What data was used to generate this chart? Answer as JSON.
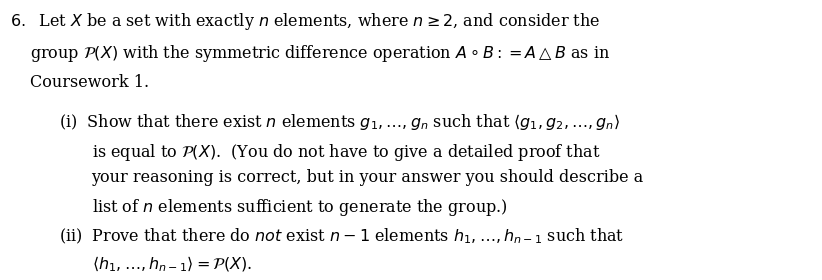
{
  "background_color": "#ffffff",
  "text_color": "#000000",
  "figsize": [
    8.22,
    2.8
  ],
  "dpi": 100,
  "main_text": "6.\\quad \\text{Let } X \\text{ be a set with exactly } n \\text{ elements, where } n \\geq 2 \\text{, and consider the}",
  "line1b": "\\text{group } \\mathcal{P}(X) \\text{ with the symmetric difference operation } A \\circ B := A\\triangle B \\text{ as in}",
  "line1c": "\\text{Coursework 1.}",
  "line_i1": "\\text{(i)\\;\\; Show that there exist } n \\text{ elements } g_1,\\ldots,g_n \\text{ such that } \\langle g_1, g_2, \\ldots, g_n \\rangle",
  "line_i2": "\\text{is equal to } \\mathcal{P}(X). \\text{\\;\\;(You do not have to give a detailed proof that}",
  "line_i3": "\\text{your reasoning is correct, but in your answer you should describe a}",
  "line_i4": "\\text{list of } n \\text{ elements sufficient to generate the group.)}",
  "line_ii1": "\\text{(ii)\\; Prove that there do } \\textit{not} \\text{ exist } n-1 \\text{ elements } h_1,\\ldots,h_{n-1} \\text{ such that}",
  "line_ii2": "\\langle h_1,\\ldots,h_{n-1}\\rangle = \\mathcal{P}(X)\\text{.}"
}
